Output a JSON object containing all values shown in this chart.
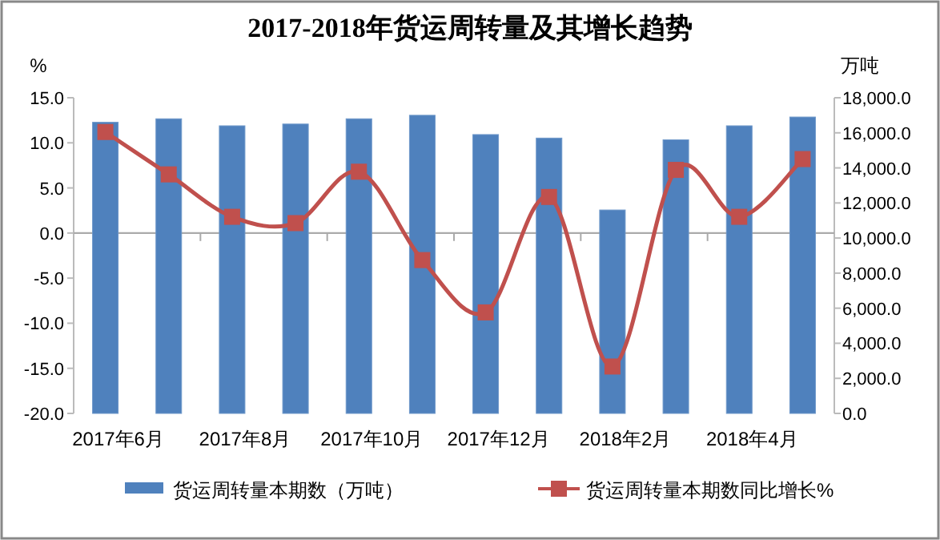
{
  "chart_data": {
    "type": "bar",
    "title": "2017-2018年货运周转量及其增长趋势",
    "ylabel": "%",
    "y2label": "万吨",
    "categories": [
      "2017年6月",
      null,
      "2017年8月",
      null,
      "2017年10月",
      null,
      "2017年12月",
      null,
      "2018年2月",
      null,
      "2018年4月",
      null
    ],
    "series": [
      {
        "name": "货运周转量本期数（万吨）",
        "axis": "y2",
        "color": "#4f81bd",
        "values": [
          16600,
          16800,
          16400,
          16500,
          16800,
          17000,
          15900,
          15700,
          11600,
          15600,
          16400,
          16900
        ]
      },
      {
        "name": "货运周转量本期数同比增长%",
        "type": "line",
        "axis": "y",
        "color": "#c0504d",
        "values": [
          11.2,
          6.5,
          1.8,
          1.1,
          6.8,
          -3.0,
          -8.8,
          4.0,
          -14.8,
          7.0,
          1.8,
          8.2
        ]
      }
    ],
    "ylim": [
      -20,
      15
    ],
    "yticks": [
      {
        "value": -20,
        "label": "-20.0"
      },
      {
        "value": -15,
        "label": "-15.0"
      },
      {
        "value": -10,
        "label": "-10.0"
      },
      {
        "value": -5,
        "label": "-5.0"
      },
      {
        "value": 0,
        "label": "0.0"
      },
      {
        "value": 5,
        "label": "5.0"
      },
      {
        "value": 10,
        "label": "10.0"
      },
      {
        "value": 15,
        "label": "15.0"
      }
    ],
    "y2lim": [
      0,
      18000
    ],
    "y2ticks": [
      {
        "value": 0,
        "label": "0.0"
      },
      {
        "value": 2000,
        "label": "2,000.0"
      },
      {
        "value": 4000,
        "label": "4,000.0"
      },
      {
        "value": 6000,
        "label": "6,000.0"
      },
      {
        "value": 8000,
        "label": "8,000.0"
      },
      {
        "value": 10000,
        "label": "10,000.0"
      },
      {
        "value": 12000,
        "label": "12,000.0"
      },
      {
        "value": 14000,
        "label": "14,000.0"
      },
      {
        "value": 16000,
        "label": "16,000.0"
      },
      {
        "value": 18000,
        "label": "18,000.0"
      }
    ],
    "marker": "square",
    "line_style": "solid",
    "legend": "bottom"
  }
}
